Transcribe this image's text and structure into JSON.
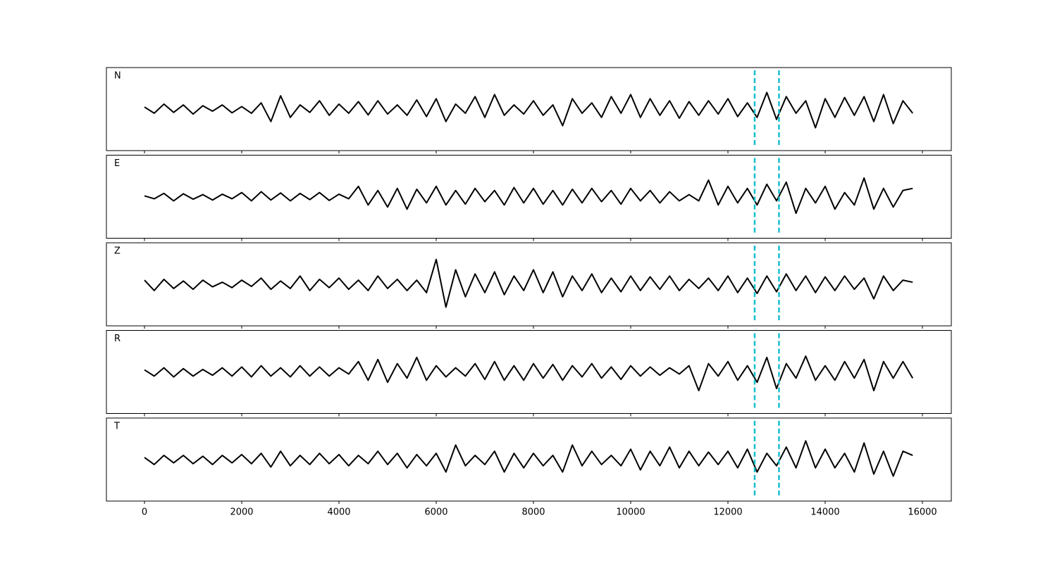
{
  "chart_data": {
    "type": "line",
    "x": [
      0,
      200,
      400,
      600,
      800,
      1000,
      1200,
      1400,
      1600,
      1800,
      2000,
      2200,
      2400,
      2600,
      2800,
      3000,
      3200,
      3400,
      3600,
      3800,
      4000,
      4200,
      4400,
      4600,
      4800,
      5000,
      5200,
      5400,
      5600,
      5800,
      6000,
      6200,
      6400,
      6600,
      6800,
      7000,
      7200,
      7400,
      7600,
      7800,
      8000,
      8200,
      8400,
      8600,
      8800,
      9000,
      9200,
      9400,
      9600,
      9800,
      10000,
      10200,
      10400,
      10600,
      10800,
      11000,
      11200,
      11400,
      11600,
      11800,
      12000,
      12200,
      12400,
      12600,
      12800,
      13000,
      13200,
      13400,
      13600,
      13800,
      14000,
      14200,
      14400,
      14600,
      14800,
      15000,
      15200,
      15400,
      15600,
      15800
    ],
    "series": [
      {
        "name": "N",
        "color": "#000000",
        "values": [
          0.05,
          -0.1,
          0.12,
          -0.08,
          0.1,
          -0.12,
          0.08,
          -0.05,
          0.1,
          -0.09,
          0.06,
          -0.1,
          0.15,
          -0.3,
          0.32,
          -0.2,
          0.1,
          -0.08,
          0.2,
          -0.15,
          0.12,
          -0.1,
          0.18,
          -0.14,
          0.2,
          -0.12,
          0.1,
          -0.15,
          0.22,
          -0.18,
          0.25,
          -0.3,
          0.12,
          -0.1,
          0.3,
          -0.2,
          0.35,
          -0.15,
          0.1,
          -0.12,
          0.2,
          -0.15,
          0.1,
          -0.4,
          0.25,
          -0.1,
          0.15,
          -0.2,
          0.3,
          -0.1,
          0.35,
          -0.2,
          0.25,
          -0.15,
          0.2,
          -0.22,
          0.18,
          -0.15,
          0.2,
          -0.12,
          0.25,
          -0.18,
          0.15,
          -0.2,
          0.4,
          -0.25,
          0.3,
          -0.1,
          0.2,
          -0.45,
          0.25,
          -0.2,
          0.28,
          -0.15,
          0.3,
          -0.3,
          0.35,
          -0.35,
          0.2,
          -0.1
        ]
      },
      {
        "name": "E",
        "color": "#000000",
        "values": [
          0.02,
          -0.05,
          0.08,
          -0.1,
          0.07,
          -0.06,
          0.05,
          -0.08,
          0.06,
          -0.05,
          0.1,
          -0.1,
          0.12,
          -0.08,
          0.09,
          -0.1,
          0.08,
          -0.07,
          0.1,
          -0.09,
          0.06,
          -0.05,
          0.25,
          -0.2,
          0.15,
          -0.25,
          0.2,
          -0.3,
          0.18,
          -0.15,
          0.25,
          -0.2,
          0.15,
          -0.18,
          0.2,
          -0.12,
          0.15,
          -0.2,
          0.22,
          -0.15,
          0.2,
          -0.18,
          0.15,
          -0.2,
          0.18,
          -0.15,
          0.2,
          -0.12,
          0.15,
          -0.18,
          0.2,
          -0.1,
          0.15,
          -0.15,
          0.12,
          -0.1,
          0.05,
          -0.1,
          0.4,
          -0.2,
          0.25,
          -0.15,
          0.2,
          -0.2,
          0.3,
          -0.1,
          0.35,
          -0.4,
          0.2,
          -0.15,
          0.25,
          -0.3,
          0.1,
          -0.2,
          0.45,
          -0.3,
          0.2,
          -0.25,
          0.15,
          0.2
        ]
      },
      {
        "name": "Z",
        "color": "#000000",
        "values": [
          0.1,
          -0.15,
          0.12,
          -0.1,
          0.08,
          -0.12,
          0.1,
          -0.06,
          0.05,
          -0.08,
          0.1,
          -0.05,
          0.15,
          -0.12,
          0.08,
          -0.1,
          0.2,
          -0.15,
          0.12,
          -0.08,
          0.15,
          -0.12,
          0.1,
          -0.15,
          0.2,
          -0.1,
          0.12,
          -0.15,
          0.1,
          -0.2,
          0.6,
          -0.55,
          0.35,
          -0.3,
          0.25,
          -0.2,
          0.3,
          -0.25,
          0.2,
          -0.15,
          0.35,
          -0.2,
          0.3,
          -0.3,
          0.2,
          -0.15,
          0.25,
          -0.2,
          0.15,
          -0.18,
          0.2,
          -0.15,
          0.18,
          -0.12,
          0.2,
          -0.15,
          0.12,
          -0.1,
          0.15,
          -0.15,
          0.2,
          -0.2,
          0.15,
          -0.22,
          0.2,
          -0.18,
          0.25,
          -0.15,
          0.2,
          -0.2,
          0.18,
          -0.15,
          0.2,
          -0.12,
          0.15,
          -0.35,
          0.2,
          -0.15,
          0.1,
          0.05
        ]
      },
      {
        "name": "R",
        "color": "#000000",
        "values": [
          0.05,
          -0.1,
          0.1,
          -0.12,
          0.08,
          -0.1,
          0.06,
          -0.08,
          0.1,
          -0.1,
          0.12,
          -0.12,
          0.15,
          -0.1,
          0.1,
          -0.12,
          0.15,
          -0.1,
          0.12,
          -0.1,
          0.1,
          -0.05,
          0.25,
          -0.2,
          0.3,
          -0.25,
          0.2,
          -0.15,
          0.35,
          -0.2,
          0.15,
          -0.12,
          0.1,
          -0.1,
          0.2,
          -0.18,
          0.25,
          -0.2,
          0.15,
          -0.2,
          0.2,
          -0.15,
          0.18,
          -0.2,
          0.15,
          -0.12,
          0.2,
          -0.15,
          0.12,
          -0.18,
          0.15,
          -0.1,
          0.12,
          -0.08,
          0.1,
          -0.05,
          0.15,
          -0.45,
          0.2,
          -0.1,
          0.25,
          -0.2,
          0.15,
          -0.25,
          0.35,
          -0.4,
          0.2,
          -0.15,
          0.38,
          -0.2,
          0.15,
          -0.2,
          0.25,
          -0.15,
          0.3,
          -0.45,
          0.25,
          -0.15,
          0.25,
          -0.15
        ]
      },
      {
        "name": "T",
        "color": "#000000",
        "values": [
          0.05,
          -0.12,
          0.1,
          -0.08,
          0.1,
          -0.1,
          0.08,
          -0.12,
          0.1,
          -0.08,
          0.12,
          -0.1,
          0.15,
          -0.18,
          0.2,
          -0.15,
          0.1,
          -0.12,
          0.15,
          -0.1,
          0.12,
          -0.15,
          0.1,
          -0.1,
          0.2,
          -0.12,
          0.15,
          -0.2,
          0.12,
          -0.15,
          0.15,
          -0.3,
          0.35,
          -0.15,
          0.1,
          -0.12,
          0.2,
          -0.3,
          0.15,
          -0.2,
          0.15,
          -0.15,
          0.1,
          -0.3,
          0.35,
          -0.15,
          0.2,
          -0.12,
          0.1,
          -0.15,
          0.25,
          -0.25,
          0.2,
          -0.15,
          0.3,
          -0.2,
          0.2,
          -0.15,
          0.18,
          -0.12,
          0.2,
          -0.2,
          0.25,
          -0.3,
          0.15,
          -0.15,
          0.3,
          -0.2,
          0.45,
          -0.2,
          0.25,
          -0.2,
          0.15,
          -0.3,
          0.4,
          -0.35,
          0.2,
          -0.4,
          0.2,
          0.1
        ]
      }
    ],
    "xlim": [
      -783,
      16594
    ],
    "ylim": [
      -1,
      1
    ],
    "xticks": [
      0,
      2000,
      4000,
      6000,
      8000,
      10000,
      12000,
      14000,
      16000
    ],
    "vlines": [
      12550,
      13050
    ],
    "vline_color": "#17becf"
  }
}
